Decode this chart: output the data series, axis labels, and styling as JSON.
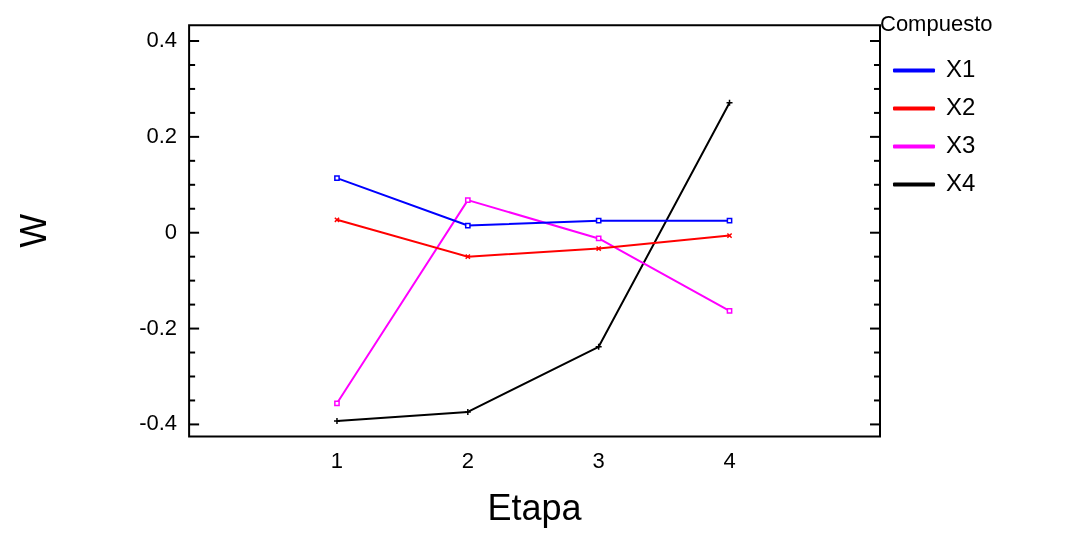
{
  "chart_data": {
    "type": "line",
    "xlabel": "Etapa",
    "ylabel": "W",
    "legend_title": "Compuesto",
    "legend": "right",
    "x": [
      1,
      2,
      3,
      4
    ],
    "xlim": [
      -0.13,
      5.15
    ],
    "xticks": [
      1,
      2,
      3,
      4
    ],
    "ylim": [
      -0.425,
      0.433
    ],
    "yticks": [
      {
        "value": -0.4,
        "label": "-0.4"
      },
      {
        "value": -0.35,
        "label": null
      },
      {
        "value": -0.3,
        "label": null
      },
      {
        "value": -0.25,
        "label": null
      },
      {
        "value": -0.2,
        "label": "-0.2"
      },
      {
        "value": -0.15,
        "label": null
      },
      {
        "value": -0.1,
        "label": null
      },
      {
        "value": -0.05,
        "label": null
      },
      {
        "value": 0,
        "label": "0"
      },
      {
        "value": 0.05,
        "label": null
      },
      {
        "value": 0.1,
        "label": null
      },
      {
        "value": 0.15,
        "label": null
      },
      {
        "value": 0.2,
        "label": "0.2"
      },
      {
        "value": 0.25,
        "label": null
      },
      {
        "value": 0.3,
        "label": null
      },
      {
        "value": 0.35,
        "label": null
      },
      {
        "value": 0.4,
        "label": "0.4"
      }
    ],
    "grid": false,
    "series": [
      {
        "name": "X1",
        "color": "#0000ff",
        "marker": "square",
        "values": [
          0.114,
          0.015,
          0.025,
          0.025
        ]
      },
      {
        "name": "X2",
        "color": "#ff0000",
        "marker": "cross",
        "values": [
          0.027,
          -0.05,
          -0.033,
          -0.006
        ]
      },
      {
        "name": "X3",
        "color": "#ff00ff",
        "marker": "square",
        "values": [
          -0.356,
          0.068,
          -0.012,
          -0.163
        ]
      },
      {
        "name": "X4",
        "color": "#000000",
        "marker": "cross",
        "values": [
          -0.393,
          -0.374,
          -0.238,
          0.271
        ]
      }
    ]
  }
}
